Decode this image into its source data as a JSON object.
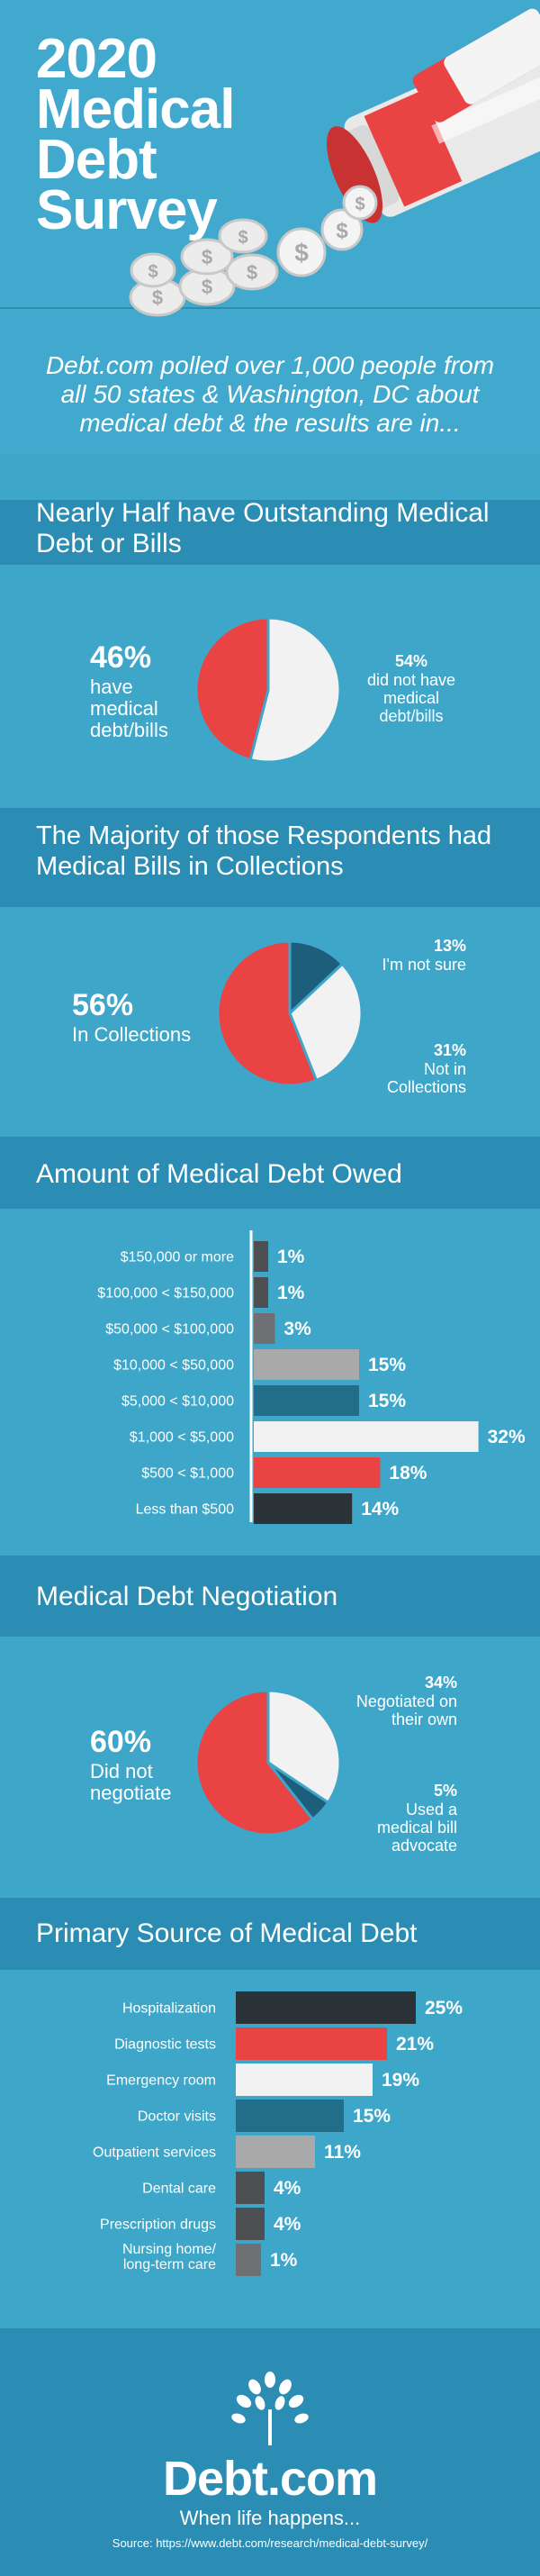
{
  "header": {
    "title_lines": [
      "2020",
      "Medical",
      "Debt",
      "Survey"
    ],
    "intro": "Debt.com polled over 1,000 people from all 50 states & Washington, DC about medical debt & the results are in..."
  },
  "sections": {
    "outstanding": {
      "title": "Nearly Half have Outstanding Medical Debt or Bills",
      "left_pct": "46%",
      "left_label": "have medical debt/bills",
      "right_pct": "54%",
      "right_label": "did not have medical debt/bills"
    },
    "collections": {
      "title": "The Majority of those Respondents had Medical Bills in Collections",
      "left_pct": "56%",
      "left_label": "In Collections",
      "unsure_pct": "13%",
      "unsure_label": "I'm not sure",
      "not_pct": "31%",
      "not_label": "Not in Collections"
    },
    "amount": {
      "title": "Amount of Medical Debt Owed"
    },
    "negotiation": {
      "title": "Medical Debt Negotiation",
      "left_pct": "60%",
      "left_label": "Did not negotiate",
      "own_pct": "34%",
      "own_label": "Negotiated on their own",
      "adv_pct": "5%",
      "adv_label": "Used a medical bill advocate"
    },
    "source": {
      "title": "Primary Source of Medical Debt"
    }
  },
  "colors": {
    "red": "#e94343",
    "white": "#f2f2f2",
    "navy": "#1d5e7c",
    "dark": "#2b3238",
    "teal": "#216d8a",
    "grey": "#a9a9a9",
    "charcoal": "#4d4f52"
  },
  "chart_data": [
    {
      "type": "pie",
      "labels": [
        "have medical debt/bills",
        "did not have medical debt/bills"
      ],
      "values": [
        46,
        54
      ],
      "colors": [
        "#e94343",
        "#f2f2f2"
      ]
    },
    {
      "type": "pie",
      "labels": [
        "In Collections",
        "Not in Collections",
        "I'm not sure"
      ],
      "values": [
        56,
        31,
        13
      ],
      "colors": [
        "#e94343",
        "#f2f2f2",
        "#1d5e7c"
      ]
    },
    {
      "type": "bar",
      "orientation": "horizontal",
      "categories": [
        "$150,000 or more",
        "$100,000 < $150,000",
        "$50,000 < $100,000",
        "$10,000 < $50,000",
        "$5,000 < $10,000",
        "$1,000 < $5,000",
        "$500 < $1,000",
        "Less than $500"
      ],
      "values": [
        1,
        1,
        3,
        15,
        15,
        32,
        18,
        14
      ],
      "value_labels": [
        "1%",
        "1%",
        "3%",
        "15%",
        "15%",
        "32%",
        "18%",
        "14%"
      ],
      "colors": [
        "#4d4f52",
        "#4d4f52",
        "#6f7074",
        "#a9a9a9",
        "#216d8a",
        "#f2f2f2",
        "#e94343",
        "#2b3238"
      ],
      "unit": "%"
    },
    {
      "type": "pie",
      "labels": [
        "Did not negotiate",
        "Negotiated on their own",
        "Used a medical bill advocate"
      ],
      "values": [
        60,
        34,
        5
      ],
      "colors": [
        "#e94343",
        "#f2f2f2",
        "#1d5e7c"
      ]
    },
    {
      "type": "bar",
      "orientation": "horizontal",
      "categories": [
        "Hospitalization",
        "Diagnostic tests",
        "Emergency room",
        "Doctor visits",
        "Outpatient services",
        "Dental care",
        "Prescription drugs",
        "Nursing home/\nlong-term care"
      ],
      "values": [
        25,
        21,
        19,
        15,
        11,
        4,
        4,
        1
      ],
      "value_labels": [
        "25%",
        "21%",
        "19%",
        "15%",
        "11%",
        "4%",
        "4%",
        "1%"
      ],
      "colors": [
        "#2b3238",
        "#e94343",
        "#f2f2f2",
        "#216d8a",
        "#a9a9a9",
        "#4d4f52",
        "#4d4f52",
        "#6f7074"
      ],
      "unit": "%"
    }
  ],
  "footer": {
    "logo": "Debt.com",
    "tagline": "When life happens...",
    "source": "Source: https://www.debt.com/research/medical-debt-survey/"
  }
}
